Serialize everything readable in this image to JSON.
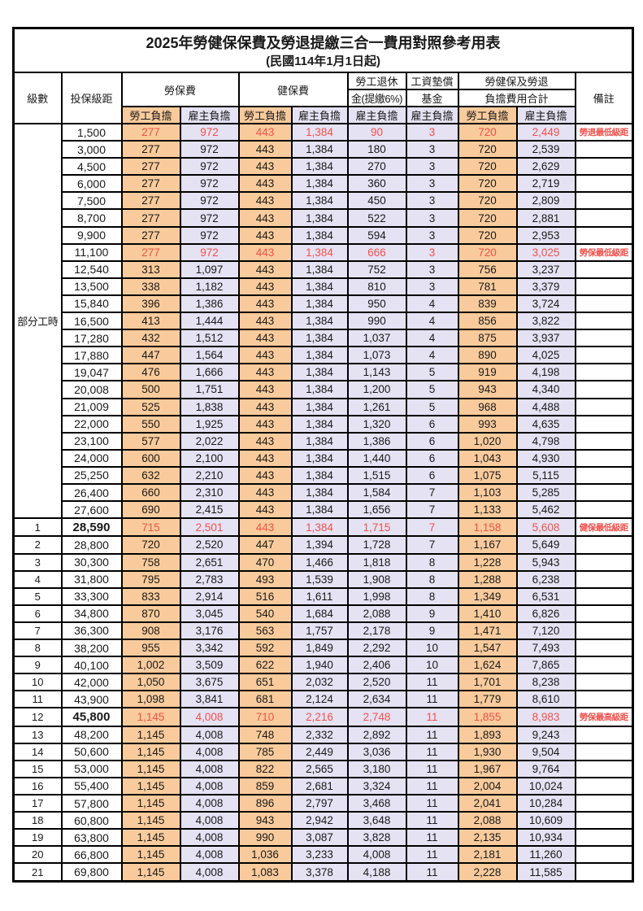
{
  "title": "2025年勞健保保費及勞退提繳三合一費用對照參考用表",
  "subtitle": "(民國114年1月1日起)",
  "colors": {
    "worker-bg": "#f9cb9c",
    "employer-bg": "#e4e2f3",
    "accent-red": "#f2514b"
  },
  "header": {
    "level": "級數",
    "bracket": "投保級距",
    "labor_group": "勞保費",
    "health_group": "健保費",
    "pension_line1": "勞工退休",
    "pension_line2": "金(提繳6%)",
    "wage_fund_line1": "工資墊償",
    "wage_fund_line2": "基金",
    "total_line1": "勞健保及勞退",
    "total_line2": "負擔費用合計",
    "remark": "備註",
    "worker": "勞工負擔",
    "employer": "雇主負擔"
  },
  "part_time_label": "部分工時",
  "part_time_rowspan": 23,
  "rows": [
    {
      "level": "",
      "bracket": "1,500",
      "labor_w": "277",
      "labor_e": "972",
      "health_w": "443",
      "health_e": "1,384",
      "pension_e": "90",
      "wage_e": "3",
      "total_w": "720",
      "total_e": "2,449",
      "remark": "勞退最低級距",
      "red": true
    },
    {
      "level": "",
      "bracket": "3,000",
      "labor_w": "277",
      "labor_e": "972",
      "health_w": "443",
      "health_e": "1,384",
      "pension_e": "180",
      "wage_e": "3",
      "total_w": "720",
      "total_e": "2,539",
      "remark": ""
    },
    {
      "level": "",
      "bracket": "4,500",
      "labor_w": "277",
      "labor_e": "972",
      "health_w": "443",
      "health_e": "1,384",
      "pension_e": "270",
      "wage_e": "3",
      "total_w": "720",
      "total_e": "2,629",
      "remark": ""
    },
    {
      "level": "",
      "bracket": "6,000",
      "labor_w": "277",
      "labor_e": "972",
      "health_w": "443",
      "health_e": "1,384",
      "pension_e": "360",
      "wage_e": "3",
      "total_w": "720",
      "total_e": "2,719",
      "remark": ""
    },
    {
      "level": "",
      "bracket": "7,500",
      "labor_w": "277",
      "labor_e": "972",
      "health_w": "443",
      "health_e": "1,384",
      "pension_e": "450",
      "wage_e": "3",
      "total_w": "720",
      "total_e": "2,809",
      "remark": ""
    },
    {
      "level": "",
      "bracket": "8,700",
      "labor_w": "277",
      "labor_e": "972",
      "health_w": "443",
      "health_e": "1,384",
      "pension_e": "522",
      "wage_e": "3",
      "total_w": "720",
      "total_e": "2,881",
      "remark": ""
    },
    {
      "level": "",
      "bracket": "9,900",
      "labor_w": "277",
      "labor_e": "972",
      "health_w": "443",
      "health_e": "1,384",
      "pension_e": "594",
      "wage_e": "3",
      "total_w": "720",
      "total_e": "2,953",
      "remark": ""
    },
    {
      "level": "",
      "bracket": "11,100",
      "labor_w": "277",
      "labor_e": "972",
      "health_w": "443",
      "health_e": "1,384",
      "pension_e": "666",
      "wage_e": "3",
      "total_w": "720",
      "total_e": "3,025",
      "remark": "勞保最低級距",
      "red": true
    },
    {
      "level": "",
      "bracket": "12,540",
      "labor_w": "313",
      "labor_e": "1,097",
      "health_w": "443",
      "health_e": "1,384",
      "pension_e": "752",
      "wage_e": "3",
      "total_w": "756",
      "total_e": "3,237",
      "remark": ""
    },
    {
      "level": "",
      "bracket": "13,500",
      "labor_w": "338",
      "labor_e": "1,182",
      "health_w": "443",
      "health_e": "1,384",
      "pension_e": "810",
      "wage_e": "3",
      "total_w": "781",
      "total_e": "3,379",
      "remark": ""
    },
    {
      "level": "",
      "bracket": "15,840",
      "labor_w": "396",
      "labor_e": "1,386",
      "health_w": "443",
      "health_e": "1,384",
      "pension_e": "950",
      "wage_e": "4",
      "total_w": "839",
      "total_e": "3,724",
      "remark": ""
    },
    {
      "level": "",
      "bracket": "16,500",
      "labor_w": "413",
      "labor_e": "1,444",
      "health_w": "443",
      "health_e": "1,384",
      "pension_e": "990",
      "wage_e": "4",
      "total_w": "856",
      "total_e": "3,822",
      "remark": ""
    },
    {
      "level": "",
      "bracket": "17,280",
      "labor_w": "432",
      "labor_e": "1,512",
      "health_w": "443",
      "health_e": "1,384",
      "pension_e": "1,037",
      "wage_e": "4",
      "total_w": "875",
      "total_e": "3,937",
      "remark": ""
    },
    {
      "level": "",
      "bracket": "17,880",
      "labor_w": "447",
      "labor_e": "1,564",
      "health_w": "443",
      "health_e": "1,384",
      "pension_e": "1,073",
      "wage_e": "4",
      "total_w": "890",
      "total_e": "4,025",
      "remark": ""
    },
    {
      "level": "",
      "bracket": "19,047",
      "labor_w": "476",
      "labor_e": "1,666",
      "health_w": "443",
      "health_e": "1,384",
      "pension_e": "1,143",
      "wage_e": "5",
      "total_w": "919",
      "total_e": "4,198",
      "remark": ""
    },
    {
      "level": "",
      "bracket": "20,008",
      "labor_w": "500",
      "labor_e": "1,751",
      "health_w": "443",
      "health_e": "1,384",
      "pension_e": "1,200",
      "wage_e": "5",
      "total_w": "943",
      "total_e": "4,340",
      "remark": ""
    },
    {
      "level": "",
      "bracket": "21,009",
      "labor_w": "525",
      "labor_e": "1,838",
      "health_w": "443",
      "health_e": "1,384",
      "pension_e": "1,261",
      "wage_e": "5",
      "total_w": "968",
      "total_e": "4,488",
      "remark": ""
    },
    {
      "level": "",
      "bracket": "22,000",
      "labor_w": "550",
      "labor_e": "1,925",
      "health_w": "443",
      "health_e": "1,384",
      "pension_e": "1,320",
      "wage_e": "6",
      "total_w": "993",
      "total_e": "4,635",
      "remark": ""
    },
    {
      "level": "",
      "bracket": "23,100",
      "labor_w": "577",
      "labor_e": "2,022",
      "health_w": "443",
      "health_e": "1,384",
      "pension_e": "1,386",
      "wage_e": "6",
      "total_w": "1,020",
      "total_e": "4,798",
      "remark": ""
    },
    {
      "level": "",
      "bracket": "24,000",
      "labor_w": "600",
      "labor_e": "2,100",
      "health_w": "443",
      "health_e": "1,384",
      "pension_e": "1,440",
      "wage_e": "6",
      "total_w": "1,043",
      "total_e": "4,930",
      "remark": ""
    },
    {
      "level": "",
      "bracket": "25,250",
      "labor_w": "632",
      "labor_e": "2,210",
      "health_w": "443",
      "health_e": "1,384",
      "pension_e": "1,515",
      "wage_e": "6",
      "total_w": "1,075",
      "total_e": "5,115",
      "remark": ""
    },
    {
      "level": "",
      "bracket": "26,400",
      "labor_w": "660",
      "labor_e": "2,310",
      "health_w": "443",
      "health_e": "1,384",
      "pension_e": "1,584",
      "wage_e": "7",
      "total_w": "1,103",
      "total_e": "5,285",
      "remark": ""
    },
    {
      "level": "",
      "bracket": "27,600",
      "labor_w": "690",
      "labor_e": "2,415",
      "health_w": "443",
      "health_e": "1,384",
      "pension_e": "1,656",
      "wage_e": "7",
      "total_w": "1,133",
      "total_e": "5,462",
      "remark": ""
    },
    {
      "level": "1",
      "bracket": "28,590",
      "labor_w": "715",
      "labor_e": "2,501",
      "health_w": "443",
      "health_e": "1,384",
      "pension_e": "1,715",
      "wage_e": "7",
      "total_w": "1,158",
      "total_e": "5,608",
      "remark": "健保最低級距",
      "red": true,
      "bold_bracket": true
    },
    {
      "level": "2",
      "bracket": "28,800",
      "labor_w": "720",
      "labor_e": "2,520",
      "health_w": "447",
      "health_e": "1,394",
      "pension_e": "1,728",
      "wage_e": "7",
      "total_w": "1,167",
      "total_e": "5,649",
      "remark": ""
    },
    {
      "level": "3",
      "bracket": "30,300",
      "labor_w": "758",
      "labor_e": "2,651",
      "health_w": "470",
      "health_e": "1,466",
      "pension_e": "1,818",
      "wage_e": "8",
      "total_w": "1,228",
      "total_e": "5,943",
      "remark": ""
    },
    {
      "level": "4",
      "bracket": "31,800",
      "labor_w": "795",
      "labor_e": "2,783",
      "health_w": "493",
      "health_e": "1,539",
      "pension_e": "1,908",
      "wage_e": "8",
      "total_w": "1,288",
      "total_e": "6,238",
      "remark": ""
    },
    {
      "level": "5",
      "bracket": "33,300",
      "labor_w": "833",
      "labor_e": "2,914",
      "health_w": "516",
      "health_e": "1,611",
      "pension_e": "1,998",
      "wage_e": "8",
      "total_w": "1,349",
      "total_e": "6,531",
      "remark": ""
    },
    {
      "level": "6",
      "bracket": "34,800",
      "labor_w": "870",
      "labor_e": "3,045",
      "health_w": "540",
      "health_e": "1,684",
      "pension_e": "2,088",
      "wage_e": "9",
      "total_w": "1,410",
      "total_e": "6,826",
      "remark": ""
    },
    {
      "level": "7",
      "bracket": "36,300",
      "labor_w": "908",
      "labor_e": "3,176",
      "health_w": "563",
      "health_e": "1,757",
      "pension_e": "2,178",
      "wage_e": "9",
      "total_w": "1,471",
      "total_e": "7,120",
      "remark": ""
    },
    {
      "level": "8",
      "bracket": "38,200",
      "labor_w": "955",
      "labor_e": "3,342",
      "health_w": "592",
      "health_e": "1,849",
      "pension_e": "2,292",
      "wage_e": "10",
      "total_w": "1,547",
      "total_e": "7,493",
      "remark": ""
    },
    {
      "level": "9",
      "bracket": "40,100",
      "labor_w": "1,002",
      "labor_e": "3,509",
      "health_w": "622",
      "health_e": "1,940",
      "pension_e": "2,406",
      "wage_e": "10",
      "total_w": "1,624",
      "total_e": "7,865",
      "remark": ""
    },
    {
      "level": "10",
      "bracket": "42,000",
      "labor_w": "1,050",
      "labor_e": "3,675",
      "health_w": "651",
      "health_e": "2,032",
      "pension_e": "2,520",
      "wage_e": "11",
      "total_w": "1,701",
      "total_e": "8,238",
      "remark": ""
    },
    {
      "level": "11",
      "bracket": "43,900",
      "labor_w": "1,098",
      "labor_e": "3,841",
      "health_w": "681",
      "health_e": "2,124",
      "pension_e": "2,634",
      "wage_e": "11",
      "total_w": "1,779",
      "total_e": "8,610",
      "remark": ""
    },
    {
      "level": "12",
      "bracket": "45,800",
      "labor_w": "1,145",
      "labor_e": "4,008",
      "health_w": "710",
      "health_e": "2,216",
      "pension_e": "2,748",
      "wage_e": "11",
      "total_w": "1,855",
      "total_e": "8,983",
      "remark": "勞保最高級距",
      "red": true,
      "bold_bracket": true
    },
    {
      "level": "13",
      "bracket": "48,200",
      "labor_w": "1,145",
      "labor_e": "4,008",
      "health_w": "748",
      "health_e": "2,332",
      "pension_e": "2,892",
      "wage_e": "11",
      "total_w": "1,893",
      "total_e": "9,243",
      "remark": ""
    },
    {
      "level": "14",
      "bracket": "50,600",
      "labor_w": "1,145",
      "labor_e": "4,008",
      "health_w": "785",
      "health_e": "2,449",
      "pension_e": "3,036",
      "wage_e": "11",
      "total_w": "1,930",
      "total_e": "9,504",
      "remark": ""
    },
    {
      "level": "15",
      "bracket": "53,000",
      "labor_w": "1,145",
      "labor_e": "4,008",
      "health_w": "822",
      "health_e": "2,565",
      "pension_e": "3,180",
      "wage_e": "11",
      "total_w": "1,967",
      "total_e": "9,764",
      "remark": ""
    },
    {
      "level": "16",
      "bracket": "55,400",
      "labor_w": "1,145",
      "labor_e": "4,008",
      "health_w": "859",
      "health_e": "2,681",
      "pension_e": "3,324",
      "wage_e": "11",
      "total_w": "2,004",
      "total_e": "10,024",
      "remark": ""
    },
    {
      "level": "17",
      "bracket": "57,800",
      "labor_w": "1,145",
      "labor_e": "4,008",
      "health_w": "896",
      "health_e": "2,797",
      "pension_e": "3,468",
      "wage_e": "11",
      "total_w": "2,041",
      "total_e": "10,284",
      "remark": ""
    },
    {
      "level": "18",
      "bracket": "60,800",
      "labor_w": "1,145",
      "labor_e": "4,008",
      "health_w": "943",
      "health_e": "2,942",
      "pension_e": "3,648",
      "wage_e": "11",
      "total_w": "2,088",
      "total_e": "10,609",
      "remark": ""
    },
    {
      "level": "19",
      "bracket": "63,800",
      "labor_w": "1,145",
      "labor_e": "4,008",
      "health_w": "990",
      "health_e": "3,087",
      "pension_e": "3,828",
      "wage_e": "11",
      "total_w": "2,135",
      "total_e": "10,934",
      "remark": ""
    },
    {
      "level": "20",
      "bracket": "66,800",
      "labor_w": "1,145",
      "labor_e": "4,008",
      "health_w": "1,036",
      "health_e": "3,233",
      "pension_e": "4,008",
      "wage_e": "11",
      "total_w": "2,181",
      "total_e": "11,260",
      "remark": ""
    },
    {
      "level": "21",
      "bracket": "69,800",
      "labor_w": "1,145",
      "labor_e": "4,008",
      "health_w": "1,083",
      "health_e": "3,378",
      "pension_e": "4,188",
      "wage_e": "11",
      "total_w": "2,228",
      "total_e": "11,585",
      "remark": ""
    }
  ]
}
